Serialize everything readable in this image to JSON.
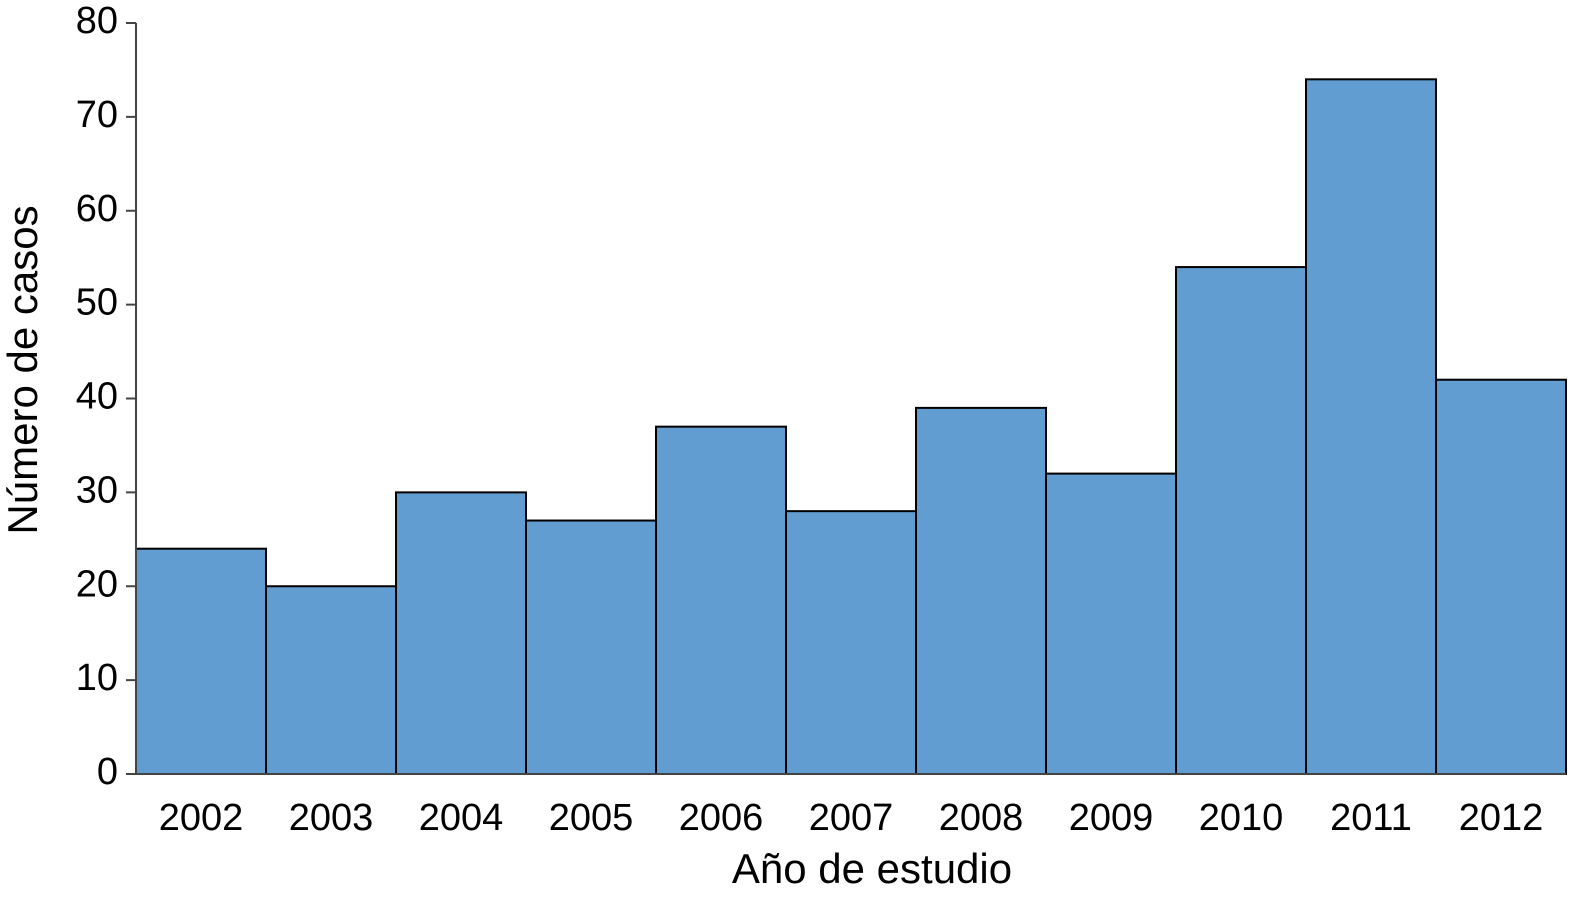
{
  "chart_data": {
    "type": "bar",
    "x_label": "Año de estudio",
    "y_label": "Número de casos",
    "categories": [
      "2002",
      "2003",
      "2004",
      "2005",
      "2006",
      "2007",
      "2008",
      "2009",
      "2010",
      "2011",
      "2012"
    ],
    "values": [
      24,
      20,
      30,
      27,
      37,
      28,
      39,
      32,
      54,
      74,
      42
    ],
    "color": "#629dd1",
    "ylim": [
      0,
      80
    ],
    "yticks": [
      0,
      10,
      20,
      30,
      40,
      50,
      60,
      70,
      80
    ],
    "grid": false
  }
}
